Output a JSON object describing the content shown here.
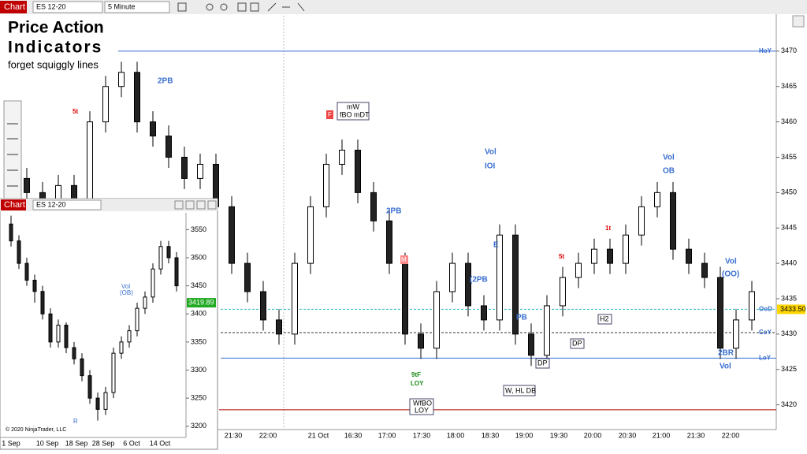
{
  "toolbar": {
    "tab": "Chart",
    "instrument": "ES 12-20",
    "interval": "5 Minute"
  },
  "title": {
    "line1": "Price Action",
    "line2": "Indicators",
    "line3": "forget squiggly lines"
  },
  "main": {
    "yticks": [
      3420,
      3425,
      3430,
      3435,
      3440,
      3445,
      3450,
      3455,
      3460,
      3465,
      3470
    ],
    "ylim": [
      3416.5,
      3475
    ],
    "xlabels": [
      "21:30",
      "22:00",
      "21 Oct",
      "16:30",
      "17:00",
      "17:30",
      "18:00",
      "18:30",
      "19:00",
      "19:30",
      "20:00",
      "20:30",
      "21:00",
      "21:30",
      "22:00"
    ],
    "levels": [
      {
        "label": "HoY",
        "value": 3470
      },
      {
        "label": "OoD",
        "value": 3433.5
      },
      {
        "label": "CoY",
        "value": 3430.2
      },
      {
        "label": "LoY",
        "value": 3426.6
      }
    ],
    "red_line": 3419.3,
    "last_price": {
      "value": 3433.5,
      "label": "3433.50"
    },
    "candles": [
      [
        3453,
        3454.5,
        3450.5,
        3452
      ],
      [
        3452,
        3453.5,
        3448.5,
        3450
      ],
      [
        3450,
        3451.5,
        3446.5,
        3448
      ],
      [
        3448,
        3452.5,
        3446.5,
        3451
      ],
      [
        3451,
        3452.5,
        3447.5,
        3449
      ],
      [
        3449,
        3461.5,
        3447.5,
        3460
      ],
      [
        3460,
        3466.5,
        3458.5,
        3465
      ],
      [
        3465,
        3468.5,
        3463.5,
        3467
      ],
      [
        3467,
        3468.5,
        3458.5,
        3460
      ],
      [
        3460,
        3461.5,
        3456.5,
        3458
      ],
      [
        3458,
        3459.5,
        3453.5,
        3455
      ],
      [
        3455,
        3456.5,
        3450.5,
        3452
      ],
      [
        3452,
        3455.5,
        3450.5,
        3454
      ],
      [
        3454,
        3455.5,
        3446.5,
        3448
      ],
      [
        3448,
        3449.5,
        3438.5,
        3440
      ],
      [
        3440,
        3441.5,
        3434.5,
        3436
      ],
      [
        3436,
        3437.5,
        3430.5,
        3432
      ],
      [
        3432,
        3433.5,
        3428.5,
        3430
      ],
      [
        3430,
        3441.5,
        3428.5,
        3440
      ],
      [
        3440,
        3449.5,
        3438.5,
        3448
      ],
      [
        3448,
        3455.5,
        3446.5,
        3454
      ],
      [
        3454,
        3457.5,
        3452.5,
        3456
      ],
      [
        3456,
        3457.5,
        3448.5,
        3450
      ],
      [
        3450,
        3451.5,
        3444.5,
        3446
      ],
      [
        3446,
        3447.5,
        3438.5,
        3440
      ],
      [
        3440,
        3441.5,
        3428.5,
        3430
      ],
      [
        3430,
        3431.5,
        3426.5,
        3428
      ],
      [
        3428,
        3437.5,
        3426.5,
        3436
      ],
      [
        3436,
        3441.5,
        3434.5,
        3440
      ],
      [
        3440,
        3441.5,
        3432.5,
        3434
      ],
      [
        3434,
        3435.5,
        3430.5,
        3432
      ],
      [
        3432,
        3445.5,
        3430.5,
        3444
      ],
      [
        3444,
        3445.5,
        3428.5,
        3430
      ],
      [
        3430,
        3431.5,
        3425.5,
        3427
      ],
      [
        3427,
        3435.5,
        3425.5,
        3434
      ],
      [
        3434,
        3439.5,
        3432.5,
        3438
      ],
      [
        3438,
        3441.5,
        3436.5,
        3440
      ],
      [
        3440,
        3443.5,
        3438.5,
        3442
      ],
      [
        3442,
        3443.5,
        3438.5,
        3440
      ],
      [
        3440,
        3445.5,
        3438.5,
        3444
      ],
      [
        3444,
        3449.5,
        3442.5,
        3448
      ],
      [
        3448,
        3451.5,
        3446.5,
        3450
      ],
      [
        3450,
        3451.5,
        3440.5,
        3442
      ],
      [
        3442,
        3443.5,
        3438.5,
        3440
      ],
      [
        3440,
        3441.5,
        3436.5,
        3438
      ],
      [
        3438,
        3439.5,
        3426.5,
        3428
      ],
      [
        3428,
        3433.5,
        3426.5,
        3432
      ],
      [
        3432,
        3437.5,
        3430.5,
        3436
      ]
    ],
    "annotations": [
      "2PB",
      "5t",
      "mW",
      "fBO mDT",
      "F",
      "Vol",
      "IOI",
      "2PB",
      "M",
      "E",
      "(2PB",
      "PB",
      "5t",
      "1t",
      "Vol",
      "OB",
      "Vol",
      "(OO)",
      "2BR",
      "Vol",
      "9tF",
      "LOY",
      "WfBO",
      "LOY",
      "W, HL DB",
      "DP",
      "DP",
      "H2"
    ]
  },
  "inset": {
    "tab": "Chart",
    "instrument": "ES 12-20",
    "copyright": "© 2020 NinjaTrader, LLC",
    "yticks": [
      3200,
      3250,
      3300,
      3350,
      3400,
      3450,
      3500,
      3550
    ],
    "ylim": [
      3180,
      3580
    ],
    "xlabels": [
      "1 Sep",
      "10 Sep",
      "18 Sep",
      "28 Sep",
      "6 Oct",
      "14 Oct"
    ],
    "last_price": {
      "value": 3419.89,
      "label": "3419.89"
    },
    "annotations": [
      "Vol",
      "(OB)",
      "R"
    ],
    "candles": [
      [
        3560,
        3575,
        3520,
        3530
      ],
      [
        3530,
        3540,
        3480,
        3490
      ],
      [
        3490,
        3500,
        3450,
        3460
      ],
      [
        3460,
        3470,
        3420,
        3440
      ],
      [
        3440,
        3450,
        3390,
        3400
      ],
      [
        3400,
        3410,
        3340,
        3350
      ],
      [
        3350,
        3390,
        3340,
        3380
      ],
      [
        3380,
        3385,
        3330,
        3340
      ],
      [
        3340,
        3350,
        3310,
        3320
      ],
      [
        3320,
        3330,
        3280,
        3290
      ],
      [
        3290,
        3300,
        3240,
        3250
      ],
      [
        3250,
        3260,
        3210,
        3230
      ],
      [
        3230,
        3270,
        3220,
        3260
      ],
      [
        3260,
        3340,
        3250,
        3330
      ],
      [
        3330,
        3360,
        3320,
        3350
      ],
      [
        3350,
        3380,
        3340,
        3370
      ],
      [
        3370,
        3420,
        3360,
        3410
      ],
      [
        3410,
        3440,
        3400,
        3430
      ],
      [
        3430,
        3490,
        3420,
        3480
      ],
      [
        3480,
        3530,
        3470,
        3520
      ],
      [
        3520,
        3530,
        3490,
        3500
      ],
      [
        3500,
        3510,
        3440,
        3450
      ]
    ]
  }
}
